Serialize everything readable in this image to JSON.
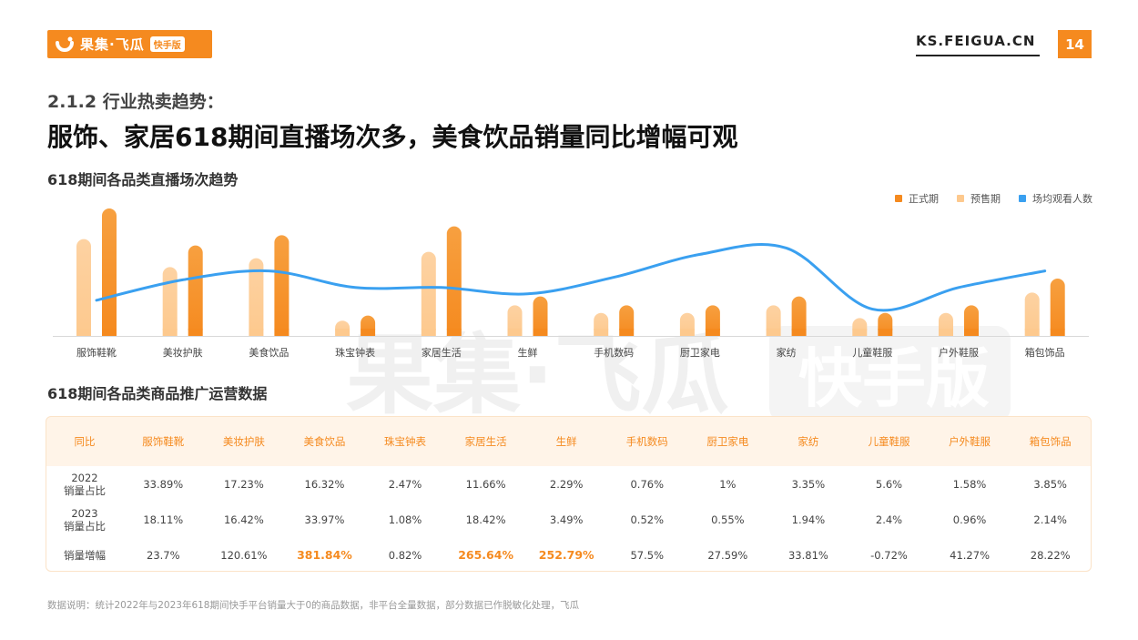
{
  "header": {
    "logo_text": "果集·飞瓜",
    "logo_badge": "快手版",
    "site": "KS.FEIGUA.CN",
    "page_number": "14",
    "accent_color": "#f58a1f"
  },
  "subtitle": "2.1.2 行业热卖趋势：",
  "title": "服饰、家居618期间直播场次多，美食饮品销量同比增幅可观",
  "watermark": {
    "text_main": "果集·飞瓜",
    "text_badge": "快手版"
  },
  "chart_section_title": "618期间各品类直播场次趋势",
  "chart_data": {
    "type": "bar",
    "title": "618期间各品类直播场次趋势",
    "categories": [
      "服饰鞋靴",
      "美妆护肤",
      "美食饮品",
      "珠宝钟表",
      "家居生活",
      "生鲜",
      "手机数码",
      "厨卫家电",
      "家纺",
      "儿童鞋服",
      "户外鞋服",
      "箱包饰品"
    ],
    "series": [
      {
        "name": "正式期",
        "type": "bar",
        "color": "#f58a1f",
        "values": [
          100,
          71,
          79,
          16,
          86,
          31,
          24,
          24,
          31,
          18,
          24,
          45
        ]
      },
      {
        "name": "预售期",
        "type": "bar",
        "color": "#fdc98e",
        "values": [
          76,
          54,
          61,
          12,
          66,
          24,
          18,
          18,
          24,
          14,
          18,
          34
        ]
      },
      {
        "name": "场均观看人数",
        "type": "line",
        "color": "#3aa0f0",
        "values": [
          28,
          44,
          51,
          38,
          38,
          33,
          46,
          64,
          69,
          21,
          38,
          51
        ]
      }
    ],
    "ylim": [
      0,
      100
    ],
    "xlabel": "",
    "ylabel": "",
    "grid": false,
    "legend": "top-right"
  },
  "table_section_title": "618期间各品类商品推广运营数据",
  "table": {
    "headers": [
      "同比",
      "服饰鞋靴",
      "美妆护肤",
      "美食饮品",
      "珠宝钟表",
      "家居生活",
      "生鲜",
      "手机数码",
      "厨卫家电",
      "家纺",
      "儿童鞋服",
      "户外鞋服",
      "箱包饰品"
    ],
    "rows": [
      {
        "label_line1": "2022",
        "label_line2": "销量占比",
        "values": [
          "33.89%",
          "17.23%",
          "16.32%",
          "2.47%",
          "11.66%",
          "2.29%",
          "0.76%",
          "1%",
          "3.35%",
          "5.6%",
          "1.58%",
          "3.85%"
        ]
      },
      {
        "label_line1": "2023",
        "label_line2": "销量占比",
        "values": [
          "18.11%",
          "16.42%",
          "33.97%",
          "1.08%",
          "18.42%",
          "3.49%",
          "0.52%",
          "0.55%",
          "1.94%",
          "2.4%",
          "0.96%",
          "2.14%"
        ]
      },
      {
        "label_line1": "销量增幅",
        "label_line2": "",
        "values": [
          "23.7%",
          "120.61%",
          "381.84%",
          "0.82%",
          "265.64%",
          "252.79%",
          "57.5%",
          "27.59%",
          "33.81%",
          "-0.72%",
          "41.27%",
          "28.22%"
        ],
        "highlight": [
          "381.84%",
          "265.64%",
          "252.79%"
        ]
      }
    ]
  },
  "note": "数据说明：统计2022年与2023年618期间快手平台销量大于0的商品数据，非平台全量数据，部分数据已作脱敏化处理，飞瓜"
}
